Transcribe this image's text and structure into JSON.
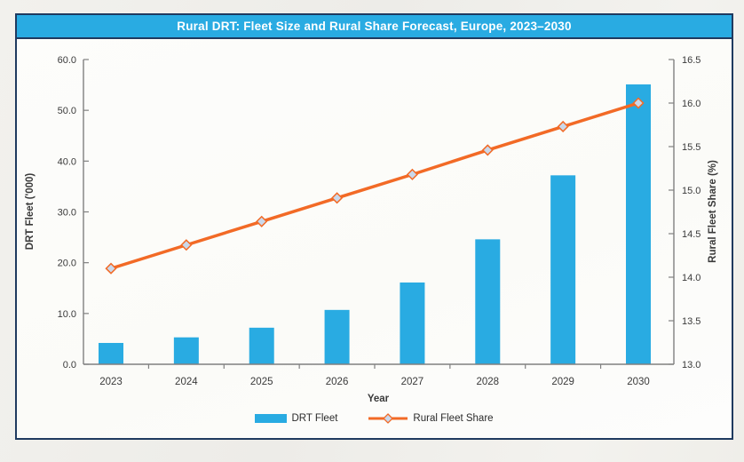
{
  "window": {
    "title": "Rural DRT: Fleet Size and Rural Share Forecast, Europe, 2023–2030"
  },
  "chart_data": {
    "type": "bar",
    "subtype": "bar-line-combo",
    "title": "Rural DRT: Fleet Size and Rural Share Forecast, Europe, 2023–2030",
    "categories": [
      "2023",
      "2024",
      "2025",
      "2026",
      "2027",
      "2028",
      "2029",
      "2030"
    ],
    "series": [
      {
        "name": "DRT Fleet",
        "type": "bar",
        "axis": "left",
        "values": [
          4.2,
          5.3,
          7.2,
          10.7,
          16.1,
          24.6,
          37.2,
          55.1
        ],
        "color": "#29abe2"
      },
      {
        "name": "Rural Fleet Share",
        "type": "line",
        "axis": "right",
        "values": [
          14.1,
          14.37,
          14.64,
          14.91,
          15.18,
          15.46,
          15.73,
          16.0
        ],
        "color": "#f26a26",
        "marker": "diamond",
        "marker_fill": "#cbd8ea"
      }
    ],
    "xlabel": "Year",
    "left_axis": {
      "label": "DRT Fleet ('000)",
      "min": 0,
      "max": 60,
      "step": 10,
      "tick_decimals": 1
    },
    "right_axis": {
      "label": "Rural Fleet Share (%)",
      "min": 13,
      "max": 16.5,
      "step": 0.5,
      "tick_decimals": 1
    },
    "grid": false,
    "legend_position": "bottom"
  },
  "colors": {
    "title_bar_bg": "#29abe2",
    "title_text": "#ffffff",
    "frame_border": "#1f3a5f",
    "bar_blue": "#29abe2",
    "line_orange": "#f26a26",
    "marker_fill": "#cbd8ea",
    "axis_line": "#808080",
    "tick_text": "#3a3a3a",
    "chart_bg": "#fdfdfb",
    "page_bg": "#f0efeb"
  }
}
